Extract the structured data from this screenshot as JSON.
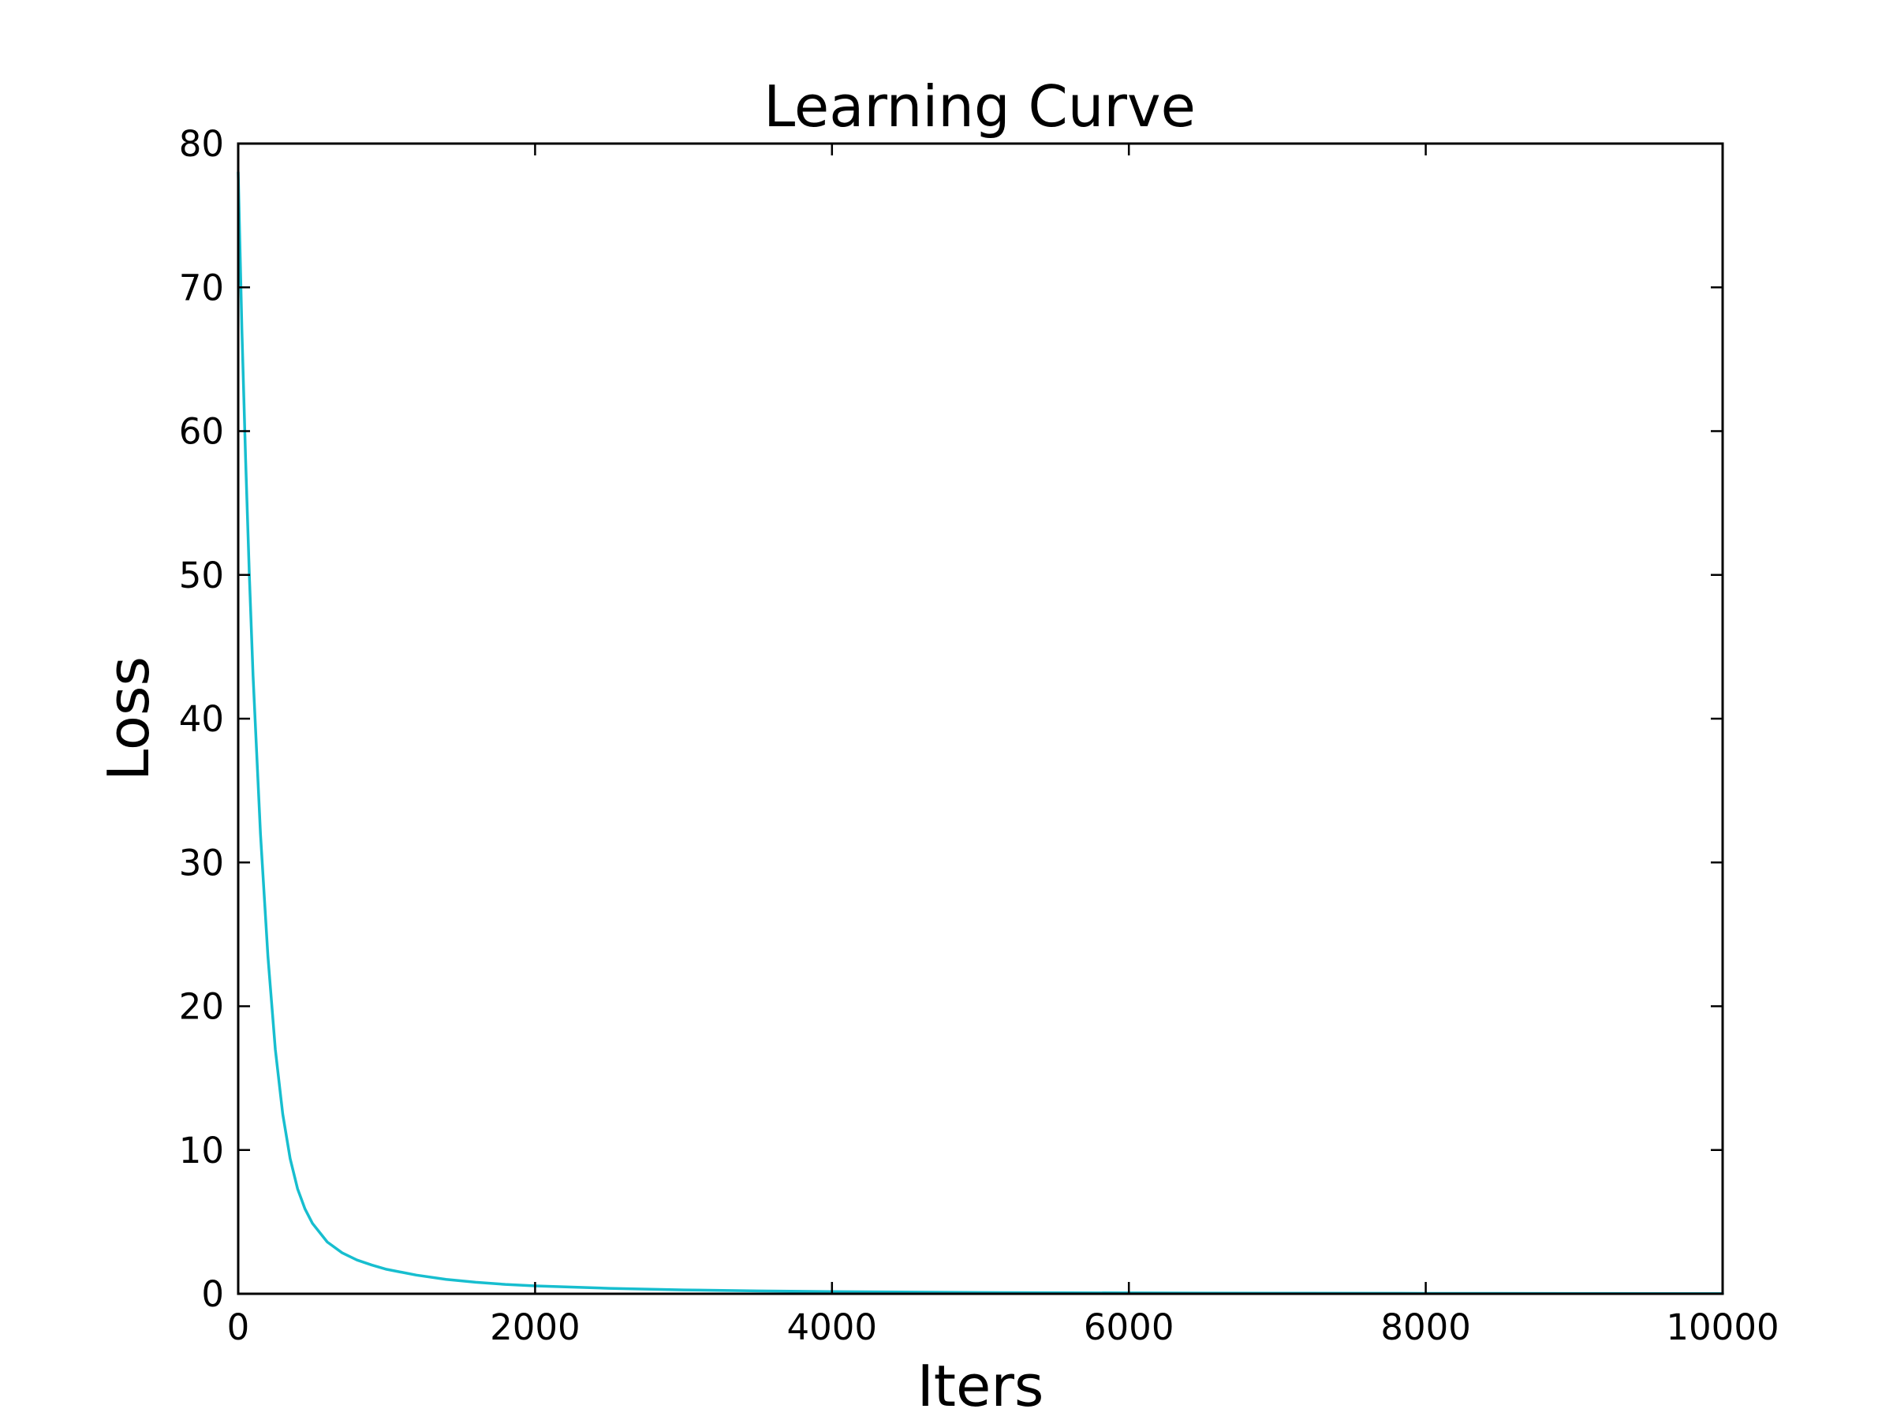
{
  "chart_data": {
    "type": "line",
    "title": "Learning Curve",
    "xlabel": "Iters",
    "ylabel": "Loss",
    "xlim": [
      0,
      10000
    ],
    "ylim": [
      0,
      80
    ],
    "xticks": [
      "0",
      "2000",
      "4000",
      "6000",
      "8000",
      "10000"
    ],
    "yticks": [
      "0",
      "10",
      "20",
      "30",
      "40",
      "50",
      "60",
      "70",
      "80"
    ],
    "grid": false,
    "legend": "none",
    "series": [
      {
        "color": "#17BECF",
        "x": [
          0,
          25,
          50,
          75,
          100,
          150,
          200,
          250,
          300,
          350,
          400,
          450,
          500,
          600,
          700,
          800,
          900,
          1000,
          1200,
          1400,
          1600,
          1800,
          2000,
          2500,
          3000,
          3500,
          4000,
          5000,
          6000,
          7000,
          8000,
          9000,
          10000
        ],
        "y": [
          78,
          67,
          58,
          50,
          43,
          32,
          23.5,
          17,
          12.5,
          9.4,
          7.3,
          5.9,
          4.9,
          3.6,
          2.85,
          2.35,
          2.0,
          1.7,
          1.3,
          1.0,
          0.8,
          0.65,
          0.55,
          0.38,
          0.27,
          0.2,
          0.15,
          0.09,
          0.06,
          0.04,
          0.03,
          0.02,
          0.015
        ]
      }
    ]
  }
}
